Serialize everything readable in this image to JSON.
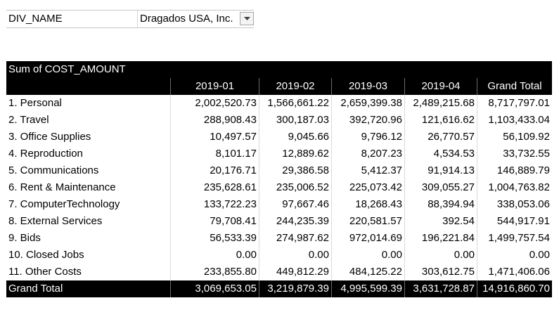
{
  "filter": {
    "field": "DIV_NAME",
    "value": "Dragados USA, Inc.",
    "dropdown_icon": "triangle-down-icon"
  },
  "pivot": {
    "title": "Sum of COST_AMOUNT",
    "columns": [
      "",
      "2019-01",
      "2019-02",
      "2019-03",
      "2019-04",
      "Grand Total"
    ],
    "rows": [
      {
        "label": "1. Personal",
        "values": [
          "2,002,520.73",
          "1,566,661.22",
          "2,659,399.38",
          "2,489,215.68",
          "8,717,797.01"
        ]
      },
      {
        "label": "2. Travel",
        "values": [
          "288,908.43",
          "300,187.03",
          "392,720.96",
          "121,616.62",
          "1,103,433.04"
        ]
      },
      {
        "label": "3. Office Supplies",
        "values": [
          "10,497.57",
          "9,045.66",
          "9,796.12",
          "26,770.57",
          "56,109.92"
        ]
      },
      {
        "label": "4. Reproduction",
        "values": [
          "8,101.17",
          "12,889.62",
          "8,207.23",
          "4,534.53",
          "33,732.55"
        ]
      },
      {
        "label": "5. Communications",
        "values": [
          "20,176.71",
          "29,386.58",
          "5,412.37",
          "91,914.13",
          "146,889.79"
        ]
      },
      {
        "label": "6. Rent & Maintenance",
        "values": [
          "235,628.61",
          "235,006.52",
          "225,073.42",
          "309,055.27",
          "1,004,763.82"
        ]
      },
      {
        "label": "7. ComputerTechnology",
        "values": [
          "133,722.23",
          "97,667.46",
          "18,268.43",
          "88,394.94",
          "338,053.06"
        ]
      },
      {
        "label": "8. External Services",
        "values": [
          "79,708.41",
          "244,235.39",
          "220,581.57",
          "392.54",
          "544,917.91"
        ]
      },
      {
        "label": "9. Bids",
        "values": [
          "56,533.39",
          "274,987.62",
          "972,014.69",
          "196,221.84",
          "1,499,757.54"
        ]
      },
      {
        "label": "10. Closed Jobs",
        "values": [
          "0.00",
          "0.00",
          "0.00",
          "0.00",
          "0.00"
        ]
      },
      {
        "label": "11. Other Costs",
        "values": [
          "233,855.80",
          "449,812.29",
          "484,125.22",
          "303,612.75",
          "1,471,406.06"
        ]
      }
    ],
    "total": {
      "label": "Grand Total",
      "values": [
        "3,069,653.05",
        "3,219,879.39",
        "4,995,599.39",
        "3,631,728.87",
        "14,916,860.70"
      ]
    }
  }
}
